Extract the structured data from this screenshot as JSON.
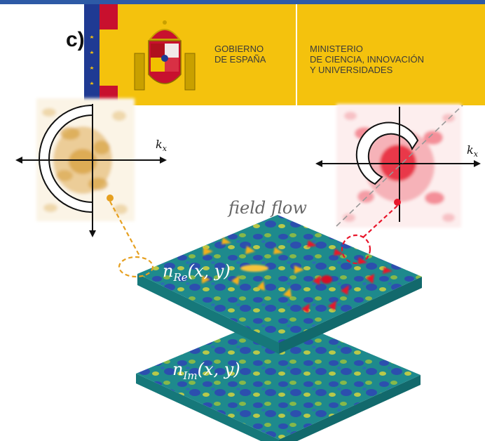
{
  "panel_label": "c)",
  "logo": {
    "government_text": "GOBIERNO\nDE ESPAÑA",
    "ministry_text": "MINISTERIO\nDE CIENCIA, INNOVACIÓN\nY UNIVERSIDADES"
  },
  "diagram": {
    "left_axis_label": "k",
    "left_axis_sub": "x",
    "right_axis_label": "k",
    "right_axis_sub": "x",
    "flow_label": "field flow",
    "top_layer_label": "n",
    "top_layer_sub": "Re",
    "top_layer_args": "(x, y)",
    "bottom_layer_label": "n",
    "bottom_layer_sub": "Im",
    "bottom_layer_args": "(x, y)"
  },
  "colors": {
    "banner_yellow": "#f4c20d",
    "gold_spectrum": "#d9a444",
    "red_spectrum": "#e8293c",
    "slab_teal": "#1f8f8f"
  }
}
